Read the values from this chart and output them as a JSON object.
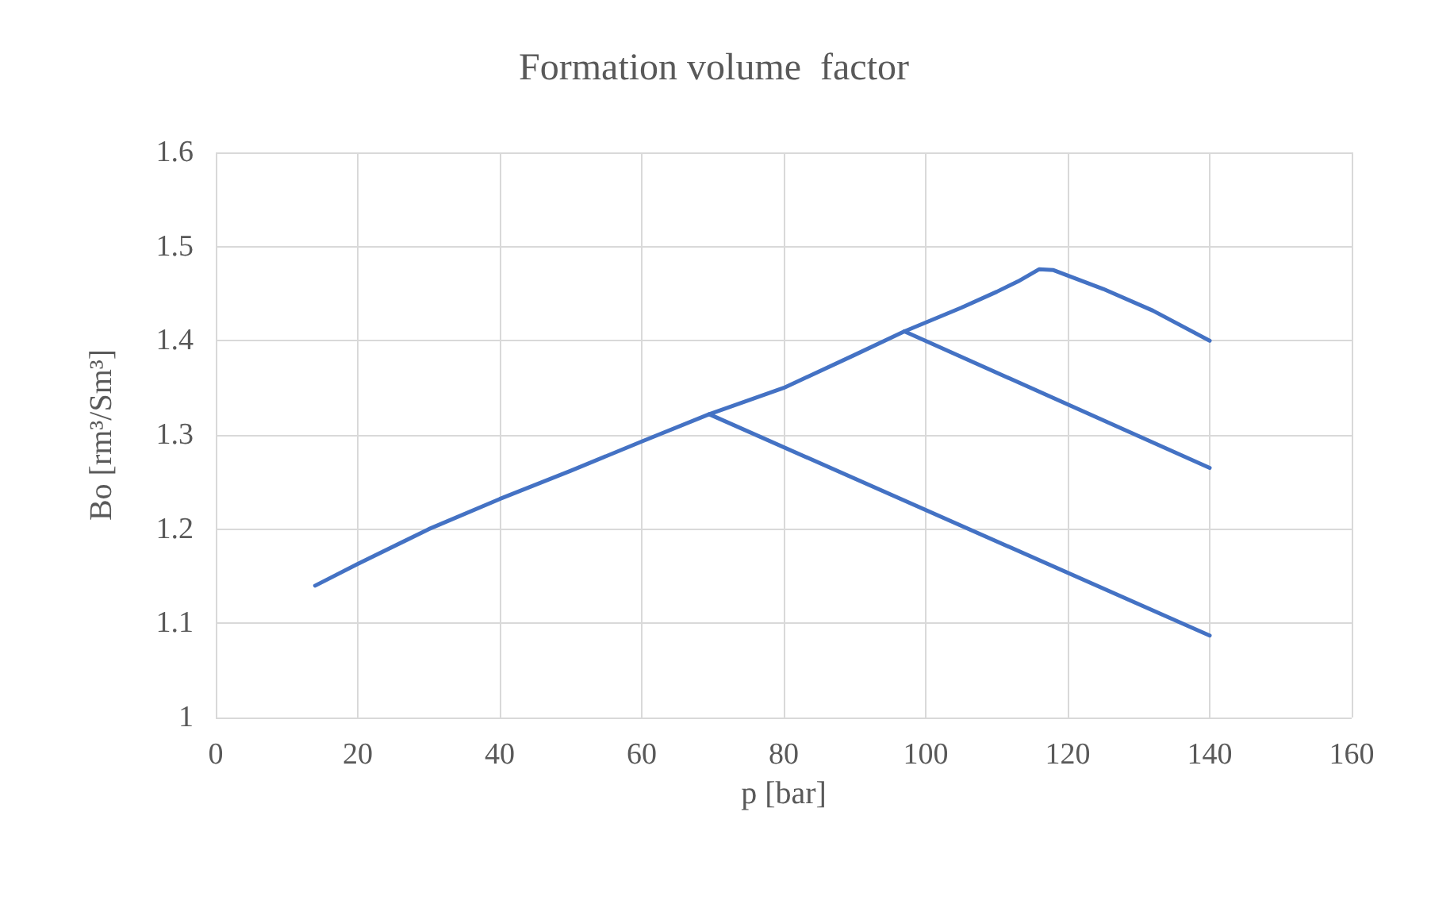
{
  "chart_data": {
    "type": "line",
    "title": "Formation volume  factor",
    "xlabel": "p [bar]",
    "ylabel": "Bo [rm³/Sm³]",
    "series": [
      {
        "color": "#4472c4",
        "x": [
          14,
          20,
          30,
          40,
          50,
          60,
          69.5,
          80,
          90,
          97,
          105,
          110,
          113,
          116,
          118,
          125,
          132,
          140
        ],
        "values": [
          1.14,
          1.163,
          1.2,
          1.232,
          1.262,
          1.293,
          1.322,
          1.35,
          1.385,
          1.41,
          1.435,
          1.452,
          1.463,
          1.476,
          1.475,
          1.455,
          1.432,
          1.4
        ]
      },
      {
        "color": "#4472c4",
        "x": [
          97,
          140
        ],
        "values": [
          1.41,
          1.265
        ]
      },
      {
        "color": "#4472c4",
        "x": [
          69.5,
          140
        ],
        "values": [
          1.322,
          1.087
        ]
      }
    ],
    "xlim": [
      0,
      160
    ],
    "xticks": [
      0,
      20,
      40,
      60,
      80,
      100,
      120,
      140,
      160
    ],
    "ylim": [
      1,
      1.6
    ],
    "yticks": [
      1,
      1.1,
      1.2,
      1.3,
      1.4,
      1.5,
      1.6
    ],
    "grid": true,
    "marker": "none",
    "line_style": "solid"
  }
}
